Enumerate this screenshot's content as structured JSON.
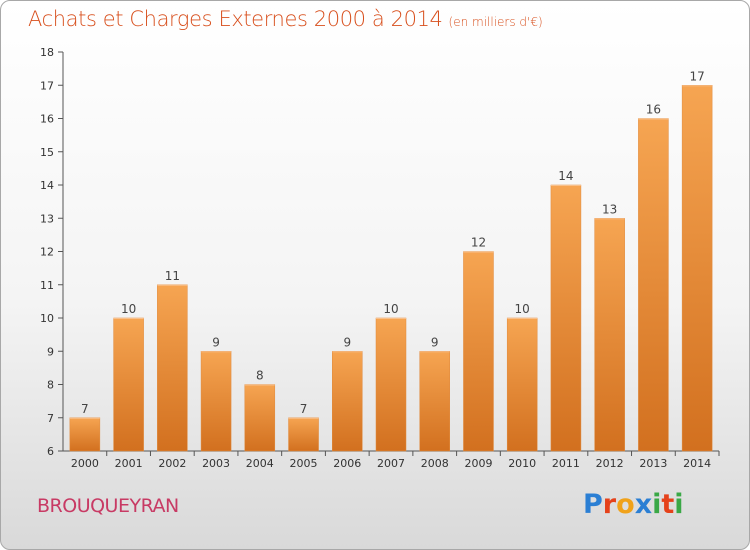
{
  "chart_data": {
    "type": "bar",
    "title": "Achats et Charges Externes 2000 à 2014",
    "subtitle": "(en milliers d'€)",
    "categories": [
      "2000",
      "2001",
      "2002",
      "2003",
      "2004",
      "2005",
      "2006",
      "2007",
      "2008",
      "2009",
      "2010",
      "2011",
      "2012",
      "2013",
      "2014"
    ],
    "values": [
      7,
      10,
      11,
      9,
      8,
      7,
      9,
      10,
      9,
      12,
      10,
      14,
      13,
      16,
      17
    ],
    "ylim": [
      6,
      18
    ],
    "yticks": [
      6,
      7,
      8,
      9,
      10,
      11,
      12,
      13,
      14,
      15,
      16,
      17,
      18
    ],
    "xlabel": "",
    "ylabel": "",
    "grid": false,
    "bar_color": "#f08a2e"
  },
  "footer": {
    "place": "BROUQUEYRAN",
    "logo_letters": [
      "P",
      "r",
      "o",
      "x",
      "i",
      "t",
      "i"
    ],
    "logo_colors": [
      "#2b7fd4",
      "#e5421b",
      "#f0a21a",
      "#2b7fd4",
      "#3aa846",
      "#e5421b",
      "#3aa846"
    ]
  }
}
